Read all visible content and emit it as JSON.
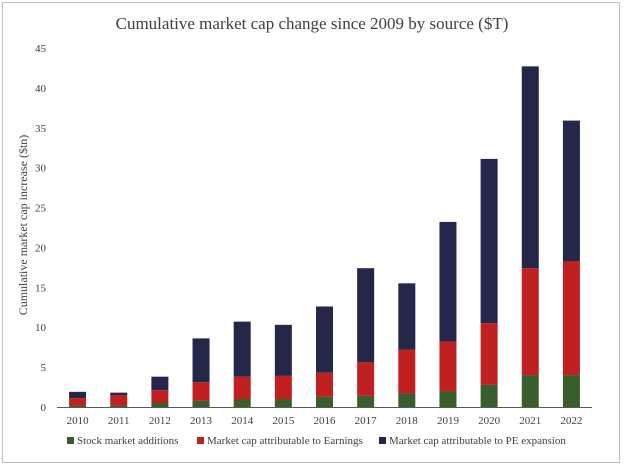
{
  "chart_data": {
    "type": "bar",
    "stacked": true,
    "title": "Cumulative market cap change since 2009 by source ($T)",
    "xlabel": "",
    "ylabel": "Cumulative market cap increase ($tn)",
    "ylim": [
      0,
      45
    ],
    "yticks": [
      0,
      5,
      10,
      15,
      20,
      25,
      30,
      35,
      40,
      45
    ],
    "grid": false,
    "legend_position": "bottom",
    "categories": [
      "2010",
      "2011",
      "2012",
      "2013",
      "2014",
      "2015",
      "2016",
      "2017",
      "2018",
      "2019",
      "2020",
      "2021",
      "2022"
    ],
    "series": [
      {
        "name": "Stock market additions",
        "color": "#3a5e2b",
        "values": [
          0.2,
          0.2,
          0.5,
          0.8,
          1.0,
          1.0,
          1.3,
          1.4,
          1.7,
          2.0,
          2.8,
          4.0,
          4.0
        ]
      },
      {
        "name": "Market cap attributable to Earnings",
        "color": "#c0201f",
        "values": [
          0.9,
          1.3,
          1.6,
          2.3,
          2.8,
          2.9,
          3.0,
          4.2,
          5.5,
          6.2,
          7.7,
          13.4,
          14.3
        ]
      },
      {
        "name": "Market cap attributable to PE expansion",
        "color": "#24264a",
        "values": [
          0.8,
          0.3,
          1.7,
          5.5,
          6.9,
          6.4,
          8.3,
          11.8,
          8.3,
          15.0,
          20.6,
          25.3,
          17.6
        ]
      }
    ]
  }
}
